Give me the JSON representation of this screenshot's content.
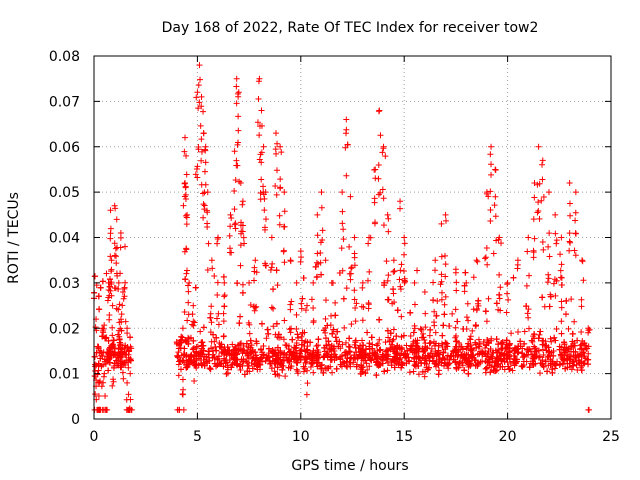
{
  "chart_data": {
    "type": "scatter",
    "title": "Day 168 of 2022, Rate Of TEC Index for receiver tow2",
    "xlabel": "GPS time / hours",
    "ylabel": "ROTI / TECUs",
    "xlim": [
      0,
      25
    ],
    "ylim": [
      0,
      0.08
    ],
    "x_ticks": [
      0,
      5,
      10,
      15,
      20,
      25
    ],
    "y_ticks": [
      0,
      0.01,
      0.02,
      0.03,
      0.04,
      0.05,
      0.06,
      0.07,
      0.08
    ],
    "x_tick_labels": [
      "0",
      "5",
      "10",
      "15",
      "20",
      "25"
    ],
    "y_tick_labels": [
      "0",
      "0.01",
      "0.02",
      "0.03",
      "0.04",
      "0.05",
      "0.06",
      "0.07",
      "0.08"
    ],
    "grid": true,
    "marker": "+",
    "color": "#ff0000",
    "data_gap": [
      1.8,
      4.0
    ],
    "series": [
      {
        "values_note_points": [
          [
            0.05,
            0.012
          ],
          [
            0.1,
            0.022
          ],
          [
            0.2,
            0.008
          ],
          [
            0.3,
            0.015
          ],
          [
            0.4,
            0.02
          ],
          [
            0.5,
            0.01
          ],
          [
            0.6,
            0.018
          ],
          [
            0.7,
            0.03
          ],
          [
            0.8,
            0.046
          ],
          [
            0.85,
            0.035
          ],
          [
            0.9,
            0.025
          ],
          [
            1.0,
            0.047
          ],
          [
            1.1,
            0.044
          ],
          [
            1.2,
            0.03
          ],
          [
            1.3,
            0.041
          ],
          [
            1.4,
            0.028
          ],
          [
            1.5,
            0.038
          ],
          [
            1.6,
            0.02
          ],
          [
            1.7,
            0.015
          ],
          [
            1.75,
            0.01
          ],
          [
            4.1,
            0.012
          ],
          [
            4.3,
            0.02
          ],
          [
            4.4,
            0.062
          ],
          [
            4.45,
            0.058
          ],
          [
            4.5,
            0.045
          ],
          [
            4.6,
            0.03
          ],
          [
            4.8,
            0.025
          ],
          [
            5.0,
            0.072
          ],
          [
            5.1,
            0.078
          ],
          [
            5.2,
            0.071
          ],
          [
            5.3,
            0.063
          ],
          [
            5.4,
            0.06
          ],
          [
            5.5,
            0.05
          ],
          [
            5.7,
            0.035
          ],
          [
            6.0,
            0.04
          ],
          [
            6.3,
            0.03
          ],
          [
            6.6,
            0.045
          ],
          [
            6.8,
            0.059
          ],
          [
            6.9,
            0.075
          ],
          [
            7.0,
            0.072
          ],
          [
            7.1,
            0.052
          ],
          [
            7.2,
            0.048
          ],
          [
            7.5,
            0.03
          ],
          [
            7.8,
            0.035
          ],
          [
            8.0,
            0.075
          ],
          [
            8.1,
            0.068
          ],
          [
            8.2,
            0.06
          ],
          [
            8.3,
            0.05
          ],
          [
            8.6,
            0.04
          ],
          [
            8.8,
            0.063
          ],
          [
            9.0,
            0.06
          ],
          [
            9.2,
            0.05
          ],
          [
            9.5,
            0.035
          ],
          [
            9.8,
            0.03
          ],
          [
            10.0,
            0.037
          ],
          [
            10.3,
            0.025
          ],
          [
            10.6,
            0.03
          ],
          [
            10.8,
            0.045
          ],
          [
            11.0,
            0.05
          ],
          [
            11.2,
            0.035
          ],
          [
            11.5,
            0.03
          ],
          [
            12.0,
            0.05
          ],
          [
            12.2,
            0.066
          ],
          [
            12.4,
            0.049
          ],
          [
            12.6,
            0.04
          ],
          [
            13.0,
            0.03
          ],
          [
            13.3,
            0.04
          ],
          [
            13.6,
            0.055
          ],
          [
            13.8,
            0.068
          ],
          [
            14.0,
            0.06
          ],
          [
            14.2,
            0.045
          ],
          [
            14.5,
            0.035
          ],
          [
            14.8,
            0.048
          ],
          [
            15.0,
            0.04
          ],
          [
            15.5,
            0.03
          ],
          [
            16.0,
            0.028
          ],
          [
            16.5,
            0.035
          ],
          [
            16.8,
            0.043
          ],
          [
            17.0,
            0.045
          ],
          [
            17.5,
            0.033
          ],
          [
            18.0,
            0.03
          ],
          [
            18.5,
            0.035
          ],
          [
            19.0,
            0.05
          ],
          [
            19.2,
            0.06
          ],
          [
            19.4,
            0.055
          ],
          [
            19.6,
            0.04
          ],
          [
            20.0,
            0.03
          ],
          [
            20.5,
            0.035
          ],
          [
            21.0,
            0.04
          ],
          [
            21.3,
            0.052
          ],
          [
            21.5,
            0.06
          ],
          [
            21.7,
            0.057
          ],
          [
            22.0,
            0.05
          ],
          [
            22.3,
            0.045
          ],
          [
            22.6,
            0.04
          ],
          [
            23.0,
            0.052
          ],
          [
            23.3,
            0.05
          ],
          [
            23.6,
            0.035
          ],
          [
            23.9,
            0.02
          ]
        ]
      }
    ]
  }
}
